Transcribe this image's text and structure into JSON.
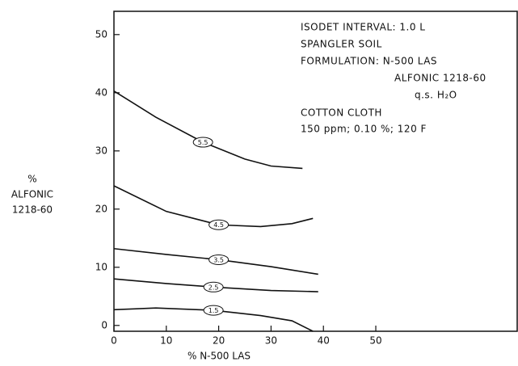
{
  "chart_data": {
    "type": "line",
    "x_label": "% N-500 LAS",
    "y_label": [
      "%",
      "ALFONIC",
      "1218-60"
    ],
    "annotations": [
      "ISODET INTERVAL: 1.0 L",
      "SPANGLER SOIL",
      "FORMULATION: N-500 LAS",
      "ALFONIC 1218-60",
      "q.s. H₂O",
      "COTTON CLOTH",
      "150 ppm; 0.10 %; 120 F"
    ],
    "xlim": [
      0,
      77
    ],
    "xticks": [
      0,
      10,
      20,
      30,
      40,
      50
    ],
    "ylim": [
      -1,
      54
    ],
    "yticks": [
      0,
      10,
      20,
      30,
      40,
      50
    ],
    "series": [
      {
        "name": "5.5",
        "color": "#111111",
        "x": [
          0,
          8,
          17,
          25,
          30,
          36
        ],
        "values": [
          40.3,
          35.8,
          31.5,
          28.6,
          27.4,
          27
        ]
      },
      {
        "name": "4.5",
        "color": "#111111",
        "x": [
          0,
          10,
          20,
          28,
          34,
          38
        ],
        "values": [
          24,
          19.6,
          17.3,
          17,
          17.5,
          18.4
        ]
      },
      {
        "name": "3.5",
        "color": "#111111",
        "x": [
          0,
          10,
          20,
          30,
          39
        ],
        "values": [
          13.2,
          12.2,
          11.3,
          10.1,
          8.8
        ]
      },
      {
        "name": "2.5",
        "color": "#111111",
        "x": [
          0,
          10,
          19,
          30,
          39
        ],
        "values": [
          8,
          7.2,
          6.6,
          6,
          5.8
        ]
      },
      {
        "name": "1.5",
        "color": "#111111",
        "x": [
          0,
          8,
          19,
          28,
          34,
          38
        ],
        "values": [
          2.7,
          3,
          2.6,
          1.7,
          0.8,
          -1
        ]
      }
    ]
  }
}
